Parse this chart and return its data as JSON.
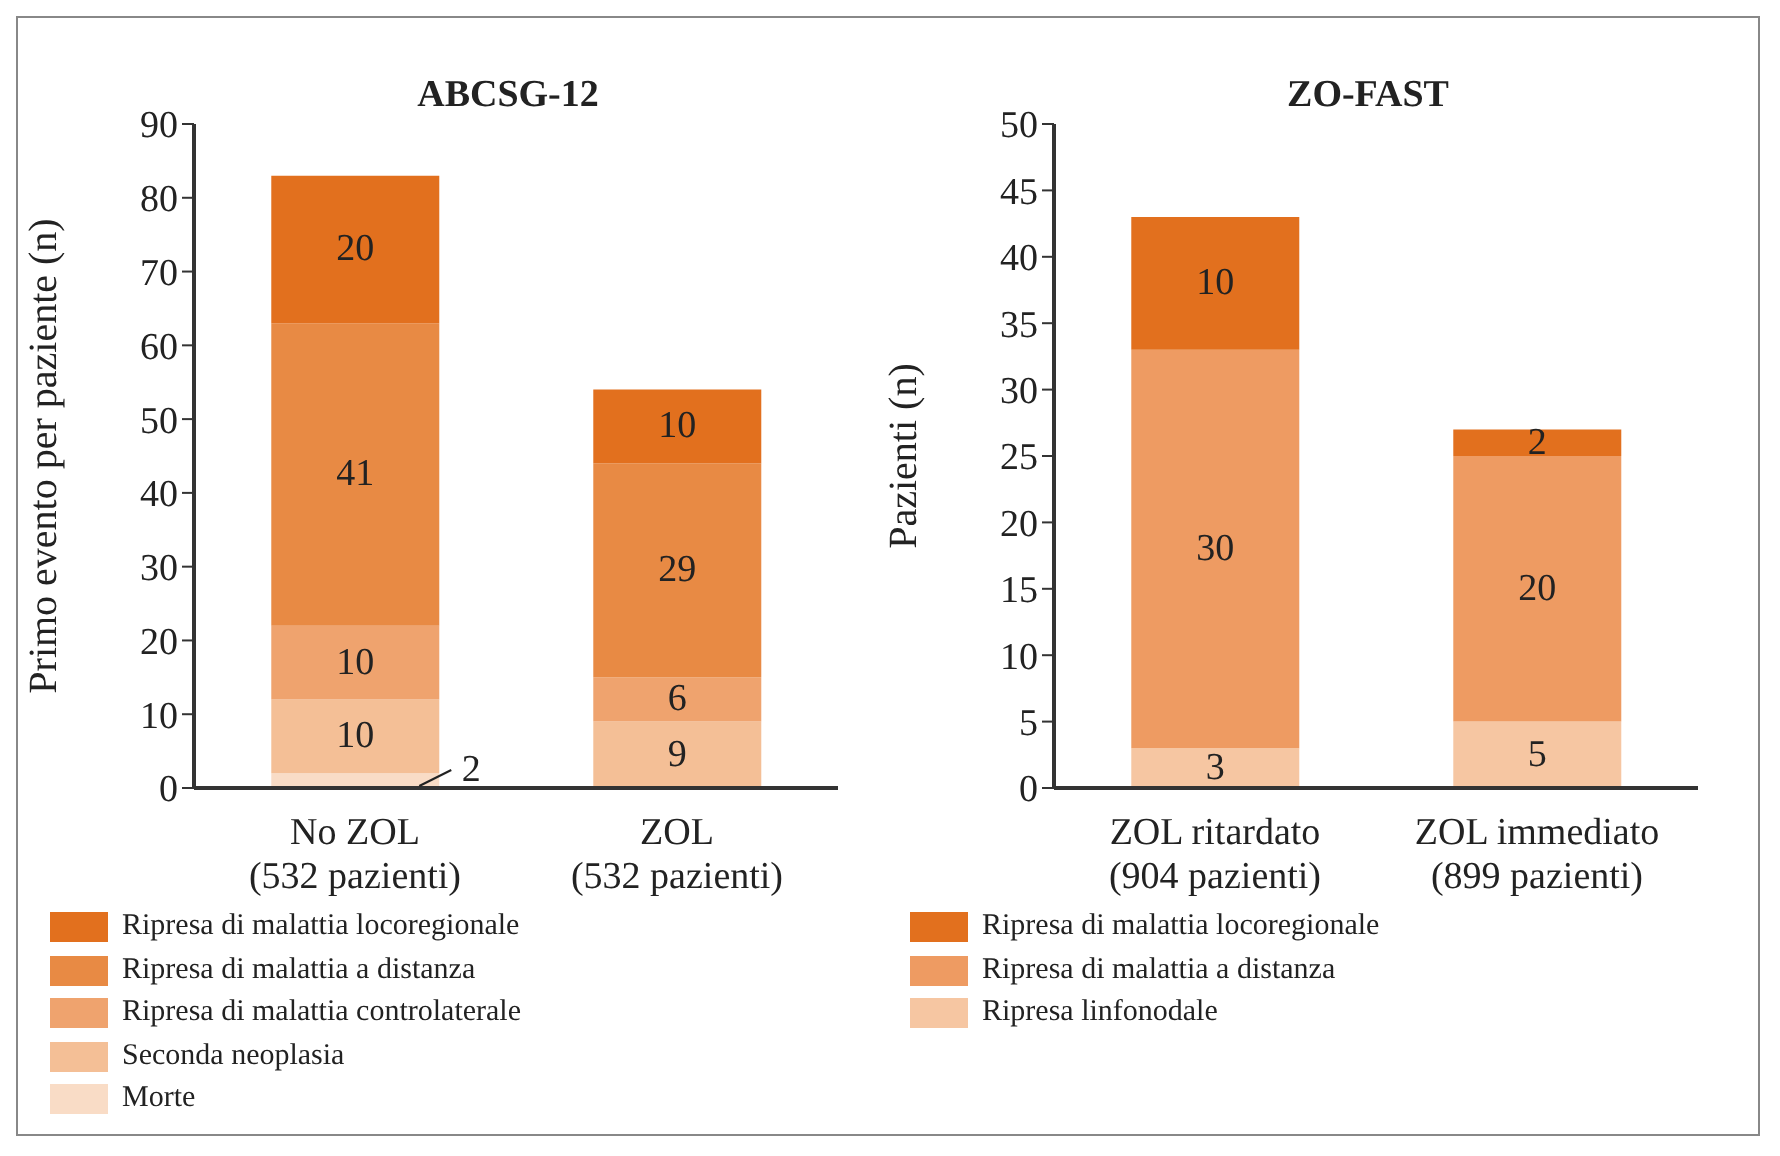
{
  "chart_data": [
    {
      "type": "bar",
      "stacked": true,
      "title": "ABCSG-12",
      "ylabel": "Primo evento per paziente (n)",
      "categories": [
        "No ZOL\n(532 pazienti)",
        "ZOL\n(532 pazienti)"
      ],
      "ylim": [
        0,
        90
      ],
      "yticks": [
        0,
        10,
        20,
        30,
        40,
        50,
        60,
        70,
        80,
        90
      ],
      "data_labels": true,
      "legend": "bottom",
      "series": [
        {
          "name": "Morte",
          "color": "#f9dcc6",
          "values": [
            2,
            null
          ]
        },
        {
          "name": "Seconda neoplasia",
          "color": "#f4bf96",
          "values": [
            10,
            9
          ]
        },
        {
          "name": "Ripresa di malattia controlaterale",
          "color": "#efa36e",
          "values": [
            10,
            6
          ]
        },
        {
          "name": "Ripresa di malattia a distanza",
          "color": "#e88a44",
          "values": [
            41,
            29
          ]
        },
        {
          "name": "Ripresa di malattia locoregionale",
          "color": "#e2701e",
          "values": [
            20,
            10
          ]
        }
      ]
    },
    {
      "type": "bar",
      "stacked": true,
      "title": "ZO-FAST",
      "ylabel": "Pazienti (n)",
      "categories": [
        "ZOL ritardato\n(904 pazienti)",
        "ZOL immediato\n(899 pazienti)"
      ],
      "ylim": [
        0,
        50
      ],
      "yticks": [
        0,
        5,
        10,
        15,
        20,
        25,
        30,
        35,
        40,
        45,
        50
      ],
      "data_labels": true,
      "legend": "bottom",
      "series": [
        {
          "name": "Ripresa linfonodale",
          "color": "#f6c6a2",
          "values": [
            3,
            5
          ]
        },
        {
          "name": "Ripresa di malattia a distanza",
          "color": "#ee9b62",
          "values": [
            30,
            20
          ]
        },
        {
          "name": "Ripresa di malattia locoregionale",
          "color": "#e2701e",
          "values": [
            10,
            2
          ]
        }
      ]
    }
  ]
}
